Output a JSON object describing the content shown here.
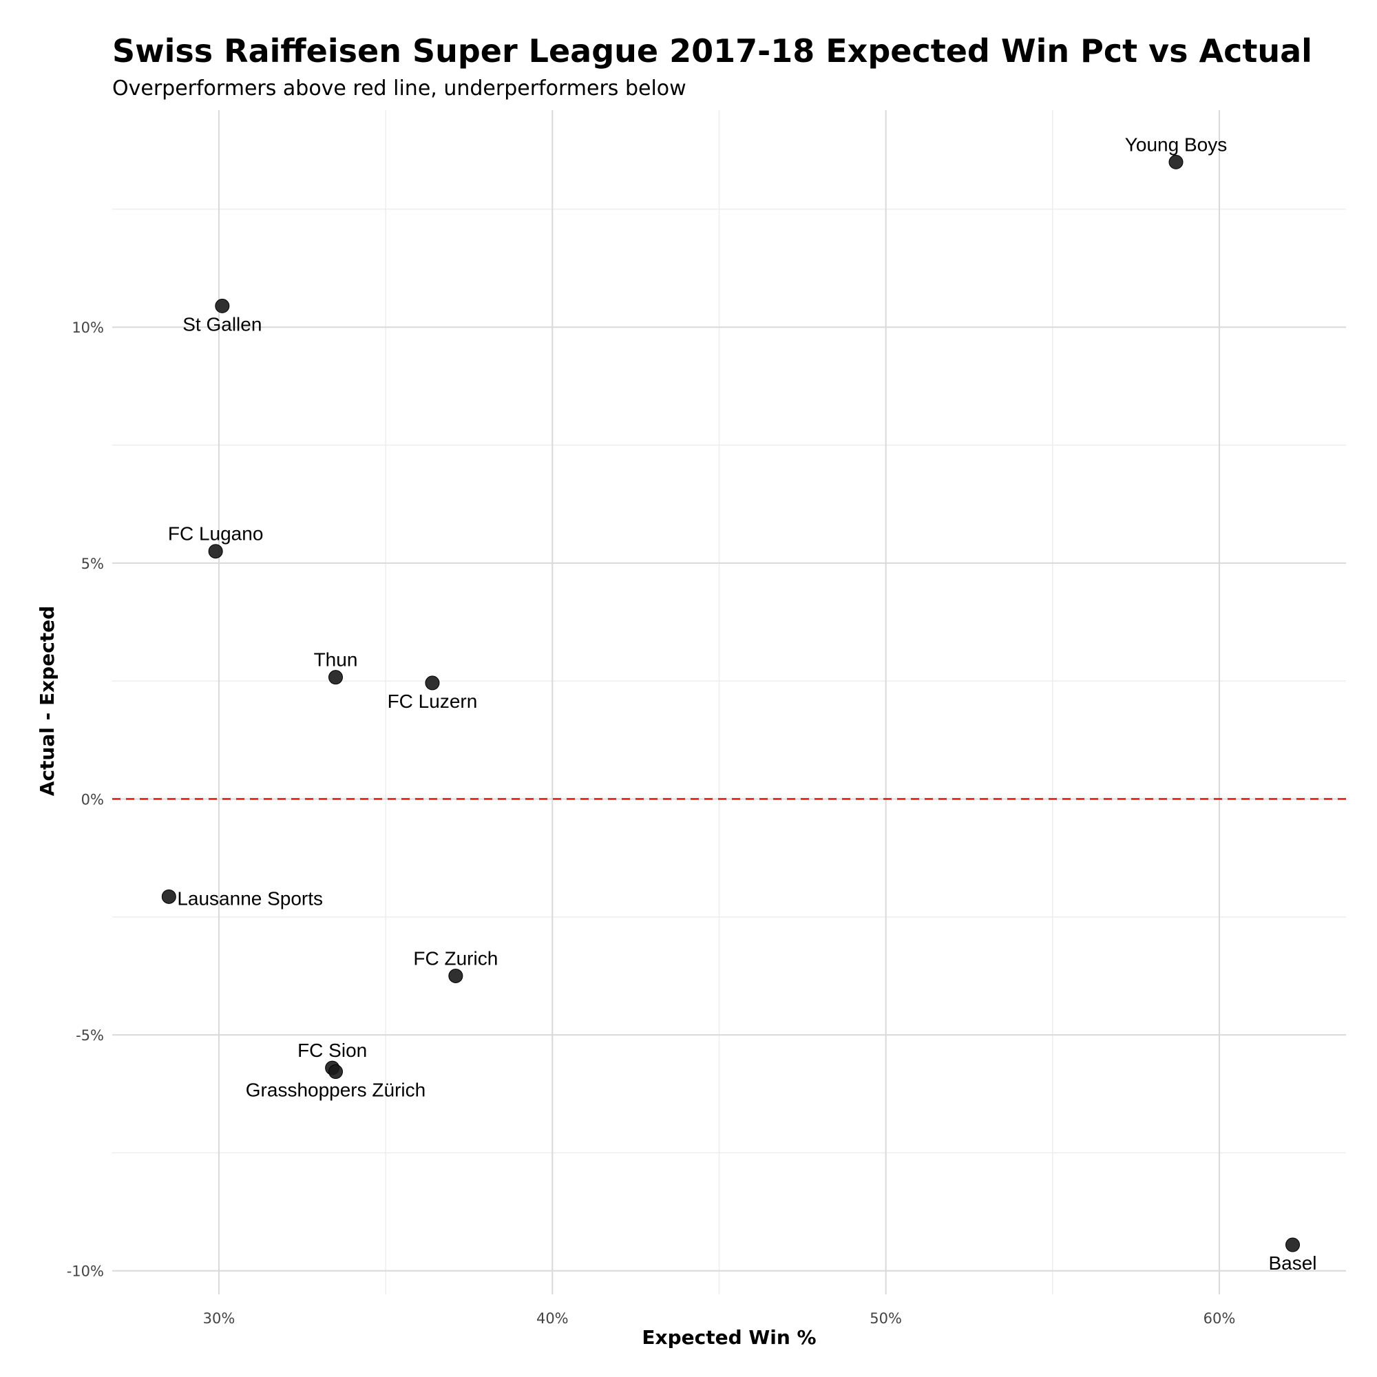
{
  "chart_data": {
    "type": "scatter",
    "title": "Swiss Raiffeisen Super League 2017-18 Expected Win Pct vs Actual",
    "subtitle": "Overperformers above red line, underperformers below",
    "xlabel": "Expected Win %",
    "ylabel": "Actual - Expected",
    "xlim": [
      0.268,
      0.638
    ],
    "ylim": [
      -0.105,
      0.146
    ],
    "x_ticks": [
      0.3,
      0.4,
      0.5,
      0.6
    ],
    "x_tick_labels": [
      "30%",
      "40%",
      "50%",
      "60%"
    ],
    "y_ticks": [
      -0.1,
      -0.05,
      0.0,
      0.05,
      0.1
    ],
    "y_tick_labels": [
      "-10%",
      "-5%",
      "0%",
      "5%",
      "10%"
    ],
    "grid": true,
    "reference_line": {
      "y": 0,
      "style": "dashed",
      "color": "#e41a1c"
    },
    "point_color": "#1a1a1a",
    "points": [
      {
        "label": "Young Boys",
        "x": 0.587,
        "y": 0.135,
        "label_pos": "above"
      },
      {
        "label": "St Gallen",
        "x": 0.301,
        "y": 0.1045,
        "label_pos": "below"
      },
      {
        "label": "FC Lugano",
        "x": 0.299,
        "y": 0.0525,
        "label_pos": "above"
      },
      {
        "label": "Thun",
        "x": 0.335,
        "y": 0.0258,
        "label_pos": "above"
      },
      {
        "label": "FC Luzern",
        "x": 0.364,
        "y": 0.0246,
        "label_pos": "below"
      },
      {
        "label": "Lausanne Sports",
        "x": 0.285,
        "y": -0.0207,
        "label_pos": "right"
      },
      {
        "label": "FC Zurich",
        "x": 0.371,
        "y": -0.0375,
        "label_pos": "above"
      },
      {
        "label": "FC Sion",
        "x": 0.334,
        "y": -0.057,
        "label_pos": "above"
      },
      {
        "label": "Grasshoppers Zürich",
        "x": 0.335,
        "y": -0.0578,
        "label_pos": "below"
      },
      {
        "label": "Basel",
        "x": 0.622,
        "y": -0.0945,
        "label_pos": "below"
      }
    ]
  }
}
